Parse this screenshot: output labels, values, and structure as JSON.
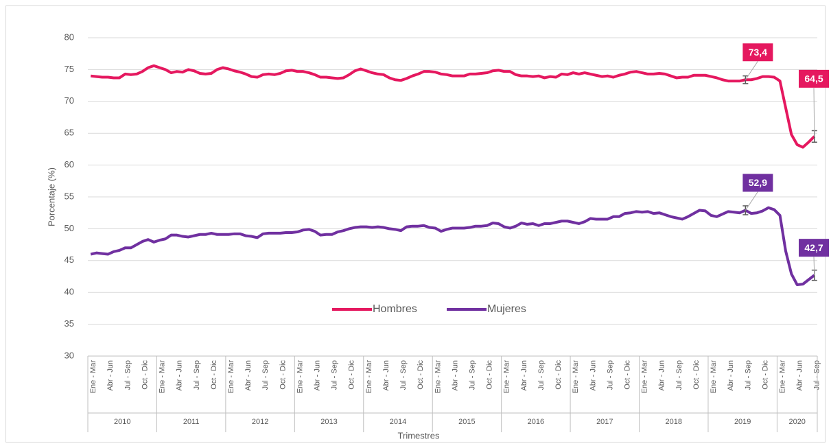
{
  "chart_data": {
    "type": "line",
    "ylabel": "Porcentaje (%)",
    "xlabel": "Trimestres",
    "ylim": [
      30,
      80
    ],
    "yticks": [
      30,
      35,
      40,
      45,
      50,
      55,
      60,
      65,
      70,
      75,
      80
    ],
    "grid": true,
    "legend": "center",
    "groups": [
      "2010",
      "2011",
      "2012",
      "2013",
      "2014",
      "2015",
      "2016",
      "2017",
      "2018",
      "2019",
      "2020"
    ],
    "categories": [
      "Ene - Mar",
      null,
      null,
      "Abr - Jun",
      null,
      null,
      "Jul - Sep",
      null,
      null,
      "Oct - Dic",
      null,
      null,
      "Ene - Mar",
      null,
      null,
      "Abr - Jun",
      null,
      null,
      "Jul - Sep",
      null,
      null,
      "Oct - Dic",
      null,
      null,
      "Ene - Mar",
      null,
      null,
      "Abr - Jun",
      null,
      null,
      "Jul - Sep",
      null,
      null,
      "Oct - Dic",
      null,
      null,
      "Ene - Mar",
      null,
      null,
      "Abr - Jun",
      null,
      null,
      "Jul - Sep",
      null,
      null,
      "Oct - Dic",
      null,
      null,
      "Ene - Mar",
      null,
      null,
      "Abr - Jun",
      null,
      null,
      "Jul - Sep",
      null,
      null,
      "Oct - Dic",
      null,
      null,
      "Ene - Mar",
      null,
      null,
      "Abr - Jun",
      null,
      null,
      "Jul - Sep",
      null,
      null,
      "Oct - Dic",
      null,
      null,
      "Ene - Mar",
      null,
      null,
      "Abr - Jun",
      null,
      null,
      "Jul - Sep",
      null,
      null,
      "Oct - Dic",
      null,
      null,
      "Ene - Mar",
      null,
      null,
      "Abr - Jun",
      null,
      null,
      "Jul - Sep",
      null,
      null,
      "Oct - Dic",
      null,
      null,
      "Ene - Mar",
      null,
      null,
      "Abr - Jun",
      null,
      null,
      "Jul - Sep",
      null,
      null,
      "Oct - Dic",
      null,
      null,
      "Ene - Mar",
      null,
      null,
      "Abr - Jun",
      null,
      null,
      "Jul - Sep",
      null,
      null,
      "Oct - Dic",
      null,
      null,
      "Ene - Mar",
      null,
      null,
      "Abr - Jun",
      null,
      null,
      "Jul - Sep"
    ],
    "series": [
      {
        "name": "Hombres",
        "color": "#e5185f",
        "values": [
          74.0,
          73.9,
          73.8,
          73.8,
          73.7,
          73.7,
          74.3,
          74.2,
          74.3,
          74.7,
          75.3,
          75.6,
          75.3,
          75.0,
          74.5,
          74.7,
          74.6,
          75.0,
          74.8,
          74.4,
          74.3,
          74.4,
          75.0,
          75.3,
          75.1,
          74.8,
          74.6,
          74.3,
          73.9,
          73.8,
          74.2,
          74.3,
          74.2,
          74.4,
          74.8,
          74.9,
          74.7,
          74.7,
          74.5,
          74.2,
          73.8,
          73.8,
          73.7,
          73.6,
          73.7,
          74.2,
          74.8,
          75.1,
          74.8,
          74.5,
          74.3,
          74.2,
          73.7,
          73.4,
          73.3,
          73.6,
          74.0,
          74.3,
          74.7,
          74.7,
          74.6,
          74.3,
          74.2,
          74.0,
          74.0,
          74.0,
          74.3,
          74.3,
          74.4,
          74.5,
          74.8,
          74.9,
          74.7,
          74.7,
          74.2,
          74.0,
          74.0,
          73.9,
          74.0,
          73.7,
          73.9,
          73.8,
          74.3,
          74.2,
          74.5,
          74.3,
          74.5,
          74.3,
          74.1,
          73.9,
          74.0,
          73.8,
          74.1,
          74.3,
          74.6,
          74.7,
          74.5,
          74.3,
          74.3,
          74.4,
          74.3,
          74.0,
          73.7,
          73.8,
          73.8,
          74.1,
          74.1,
          74.1,
          73.9,
          73.7,
          73.4,
          73.2,
          73.2,
          73.2,
          73.4,
          73.4,
          73.6,
          73.9,
          73.9,
          73.8,
          73.2,
          69.0,
          64.8,
          63.2,
          62.8,
          63.6,
          64.5
        ],
        "value_labels": [
          null,
          null,
          null,
          null,
          null,
          null,
          null,
          null,
          null,
          null,
          null,
          null,
          null,
          null,
          null,
          null,
          null,
          null,
          null,
          null,
          null,
          null,
          null,
          null,
          null,
          null,
          null,
          null,
          null,
          null,
          null,
          null,
          null,
          null,
          null,
          null,
          null,
          null,
          null,
          null,
          null,
          null,
          null,
          null,
          null,
          null,
          null,
          null,
          null,
          null,
          null,
          null,
          null,
          null,
          null,
          null,
          null,
          null,
          null,
          null,
          null,
          null,
          null,
          null,
          null,
          null,
          null,
          null,
          null,
          null,
          null,
          null,
          null,
          null,
          null,
          null,
          null,
          null,
          null,
          null,
          null,
          null,
          null,
          null,
          null,
          null,
          null,
          null,
          null,
          null,
          null,
          null,
          null,
          null,
          null,
          null,
          null,
          null,
          null,
          null,
          null,
          null,
          null,
          null,
          null,
          null,
          null,
          null,
          null,
          null,
          null,
          null,
          null,
          null,
          "73,4",
          null,
          null,
          null,
          null,
          null,
          null,
          null,
          null,
          null,
          null,
          null,
          "64,5"
        ],
        "errors": [
          null,
          null,
          null,
          null,
          null,
          null,
          null,
          null,
          null,
          null,
          null,
          null,
          null,
          null,
          null,
          null,
          null,
          null,
          null,
          null,
          null,
          null,
          null,
          null,
          null,
          null,
          null,
          null,
          null,
          null,
          null,
          null,
          null,
          null,
          null,
          null,
          null,
          null,
          null,
          null,
          null,
          null,
          null,
          null,
          null,
          null,
          null,
          null,
          null,
          null,
          null,
          null,
          null,
          null,
          null,
          null,
          null,
          null,
          null,
          null,
          null,
          null,
          null,
          null,
          null,
          null,
          null,
          null,
          null,
          null,
          null,
          null,
          null,
          null,
          null,
          null,
          null,
          null,
          null,
          null,
          null,
          null,
          null,
          null,
          null,
          null,
          null,
          null,
          null,
          null,
          null,
          null,
          null,
          null,
          null,
          null,
          null,
          null,
          null,
          null,
          null,
          null,
          null,
          null,
          null,
          null,
          null,
          null,
          null,
          null,
          null,
          null,
          null,
          null,
          0.6,
          null,
          null,
          null,
          null,
          null,
          null,
          null,
          null,
          null,
          null,
          null,
          0.9
        ]
      },
      {
        "name": "Mujeres",
        "color": "#7030a0",
        "values": [
          46.0,
          46.2,
          46.1,
          46.0,
          46.4,
          46.6,
          47.0,
          47.0,
          47.5,
          48.0,
          48.3,
          47.9,
          48.2,
          48.4,
          49.0,
          49.0,
          48.8,
          48.7,
          48.9,
          49.1,
          49.1,
          49.3,
          49.1,
          49.1,
          49.1,
          49.2,
          49.2,
          48.9,
          48.8,
          48.6,
          49.2,
          49.3,
          49.3,
          49.3,
          49.4,
          49.4,
          49.5,
          49.8,
          49.9,
          49.6,
          49.0,
          49.1,
          49.1,
          49.5,
          49.7,
          50.0,
          50.2,
          50.3,
          50.3,
          50.2,
          50.3,
          50.2,
          50.0,
          49.9,
          49.7,
          50.3,
          50.4,
          50.4,
          50.5,
          50.2,
          50.1,
          49.6,
          49.9,
          50.1,
          50.1,
          50.1,
          50.2,
          50.4,
          50.4,
          50.5,
          50.9,
          50.8,
          50.3,
          50.1,
          50.4,
          50.9,
          50.7,
          50.8,
          50.5,
          50.8,
          50.8,
          51.0,
          51.2,
          51.2,
          51.0,
          50.8,
          51.1,
          51.6,
          51.5,
          51.5,
          51.5,
          51.9,
          51.9,
          52.4,
          52.5,
          52.7,
          52.6,
          52.7,
          52.4,
          52.5,
          52.2,
          51.9,
          51.7,
          51.5,
          51.9,
          52.4,
          52.9,
          52.8,
          52.1,
          51.9,
          52.3,
          52.7,
          52.6,
          52.5,
          52.9,
          52.4,
          52.5,
          52.8,
          53.3,
          53.0,
          52.1,
          46.5,
          42.9,
          41.2,
          41.3,
          42.0,
          42.7
        ],
        "value_labels": [
          null,
          null,
          null,
          null,
          null,
          null,
          null,
          null,
          null,
          null,
          null,
          null,
          null,
          null,
          null,
          null,
          null,
          null,
          null,
          null,
          null,
          null,
          null,
          null,
          null,
          null,
          null,
          null,
          null,
          null,
          null,
          null,
          null,
          null,
          null,
          null,
          null,
          null,
          null,
          null,
          null,
          null,
          null,
          null,
          null,
          null,
          null,
          null,
          null,
          null,
          null,
          null,
          null,
          null,
          null,
          null,
          null,
          null,
          null,
          null,
          null,
          null,
          null,
          null,
          null,
          null,
          null,
          null,
          null,
          null,
          null,
          null,
          null,
          null,
          null,
          null,
          null,
          null,
          null,
          null,
          null,
          null,
          null,
          null,
          null,
          null,
          null,
          null,
          null,
          null,
          null,
          null,
          null,
          null,
          null,
          null,
          null,
          null,
          null,
          null,
          null,
          null,
          null,
          null,
          null,
          null,
          null,
          null,
          null,
          null,
          null,
          null,
          null,
          null,
          "52,9",
          null,
          null,
          null,
          null,
          null,
          null,
          null,
          null,
          null,
          null,
          null,
          "42,7"
        ],
        "errors": [
          null,
          null,
          null,
          null,
          null,
          null,
          null,
          null,
          null,
          null,
          null,
          null,
          null,
          null,
          null,
          null,
          null,
          null,
          null,
          null,
          null,
          null,
          null,
          null,
          null,
          null,
          null,
          null,
          null,
          null,
          null,
          null,
          null,
          null,
          null,
          null,
          null,
          null,
          null,
          null,
          null,
          null,
          null,
          null,
          null,
          null,
          null,
          null,
          null,
          null,
          null,
          null,
          null,
          null,
          null,
          null,
          null,
          null,
          null,
          null,
          null,
          null,
          null,
          null,
          null,
          null,
          null,
          null,
          null,
          null,
          null,
          null,
          null,
          null,
          null,
          null,
          null,
          null,
          null,
          null,
          null,
          null,
          null,
          null,
          null,
          null,
          null,
          null,
          null,
          null,
          null,
          null,
          null,
          null,
          null,
          null,
          null,
          null,
          null,
          null,
          null,
          null,
          null,
          null,
          null,
          null,
          null,
          null,
          null,
          null,
          null,
          null,
          null,
          null,
          0.7,
          null,
          null,
          null,
          null,
          null,
          null,
          null,
          null,
          null,
          null,
          null,
          0.8
        ]
      }
    ]
  }
}
